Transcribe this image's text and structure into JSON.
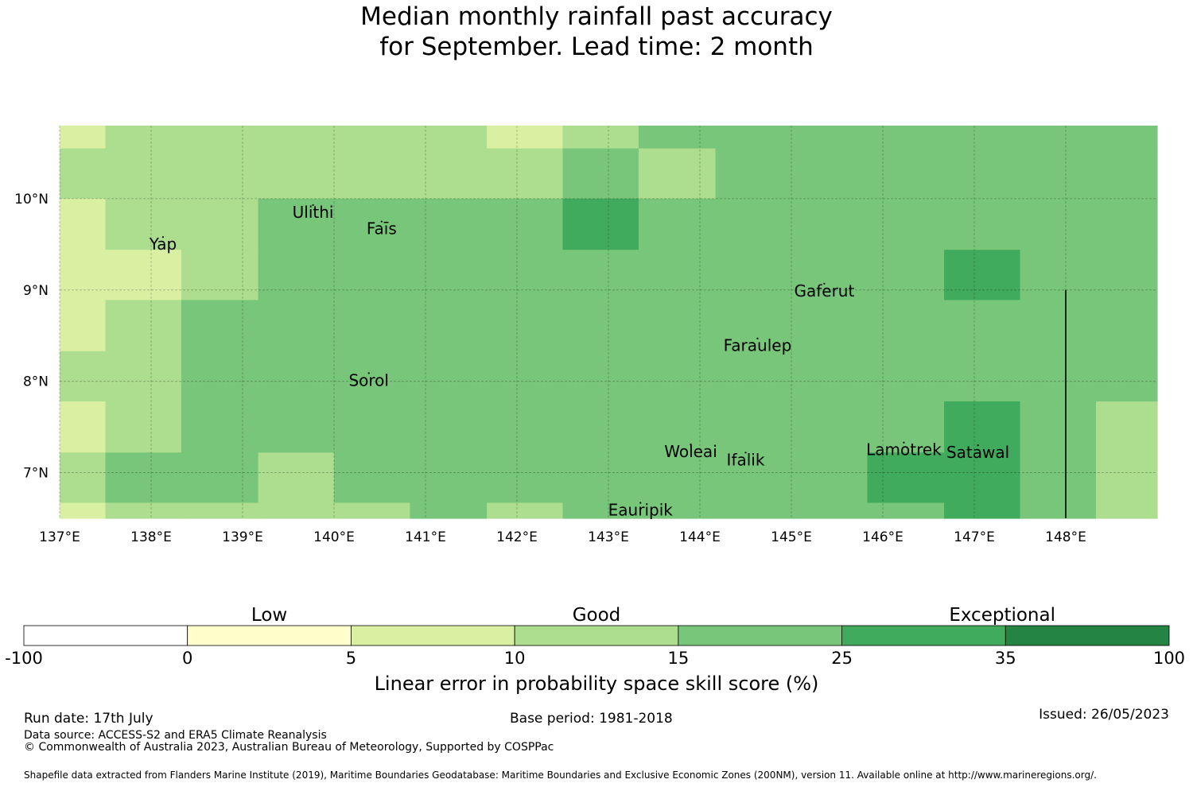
{
  "title": {
    "line1": "Median monthly rainfall past accuracy",
    "line2": "for September. Lead time: 2 month"
  },
  "chart_data": {
    "type": "heatmap",
    "lon_range": [
      137.0,
      149.0
    ],
    "lat_range": [
      6.5,
      10.8
    ],
    "cell_lon_edges": [
      137.0,
      137.5,
      138.33,
      139.17,
      140.0,
      140.83,
      141.67,
      142.5,
      143.33,
      144.17,
      145.0,
      145.83,
      146.67,
      147.5,
      148.33,
      149.0
    ],
    "cell_lat_edges": [
      10.8,
      10.55,
      10.0,
      9.44,
      8.89,
      8.33,
      7.78,
      7.22,
      6.67,
      6.5
    ],
    "class_grid": [
      [
        2,
        3,
        3,
        3,
        3,
        3,
        2,
        3,
        4,
        4,
        4,
        4,
        4,
        4,
        4
      ],
      [
        3,
        3,
        3,
        3,
        3,
        3,
        3,
        4,
        3,
        4,
        4,
        4,
        4,
        4,
        4
      ],
      [
        2,
        3,
        3,
        4,
        4,
        4,
        4,
        5,
        4,
        4,
        4,
        4,
        4,
        4,
        4
      ],
      [
        2,
        2,
        3,
        4,
        4,
        4,
        4,
        4,
        4,
        4,
        4,
        4,
        5,
        4,
        4
      ],
      [
        2,
        3,
        4,
        4,
        4,
        4,
        4,
        4,
        4,
        4,
        4,
        4,
        4,
        4,
        4
      ],
      [
        3,
        3,
        4,
        4,
        4,
        4,
        4,
        4,
        4,
        4,
        4,
        4,
        4,
        4,
        4
      ],
      [
        2,
        3,
        4,
        4,
        4,
        4,
        4,
        4,
        4,
        4,
        4,
        4,
        5,
        4,
        3
      ],
      [
        3,
        4,
        4,
        3,
        4,
        4,
        4,
        4,
        4,
        4,
        4,
        5,
        5,
        4,
        3
      ],
      [
        2,
        3,
        3,
        3,
        3,
        4,
        3,
        4,
        4,
        4,
        4,
        4,
        5,
        4,
        3
      ]
    ],
    "xticks": [
      {
        "value": 137,
        "label": "137°E"
      },
      {
        "value": 138,
        "label": "138°E"
      },
      {
        "value": 139,
        "label": "139°E"
      },
      {
        "value": 140,
        "label": "140°E"
      },
      {
        "value": 141,
        "label": "141°E"
      },
      {
        "value": 142,
        "label": "142°E"
      },
      {
        "value": 143,
        "label": "143°E"
      },
      {
        "value": 144,
        "label": "144°E"
      },
      {
        "value": 145,
        "label": "145°E"
      },
      {
        "value": 146,
        "label": "146°E"
      },
      {
        "value": 147,
        "label": "147°E"
      },
      {
        "value": 148,
        "label": "148°E"
      }
    ],
    "yticks": [
      {
        "value": 10,
        "label": "10°N"
      },
      {
        "value": 9,
        "label": "9°N"
      },
      {
        "value": 8,
        "label": "8°N"
      },
      {
        "value": 7,
        "label": "7°N"
      }
    ],
    "grid": true,
    "boundary_line": {
      "lon": 148.0,
      "lat_from": 9.0,
      "lat_to": 6.5
    },
    "places": [
      {
        "name": "Ulithi",
        "lon": 139.77,
        "lat": 9.86
      },
      {
        "name": "Faīs",
        "lon": 140.52,
        "lat": 9.68
      },
      {
        "name": "Yap",
        "lon": 138.13,
        "lat": 9.51
      },
      {
        "name": "Gaferut",
        "lon": 145.36,
        "lat": 9.0
      },
      {
        "name": "Faraulep",
        "lon": 144.63,
        "lat": 8.4
      },
      {
        "name": "Sorol",
        "lon": 140.38,
        "lat": 8.02
      },
      {
        "name": "Woleai",
        "lon": 143.9,
        "lat": 7.24
      },
      {
        "name": "Ifalik",
        "lon": 144.5,
        "lat": 7.15
      },
      {
        "name": "Lamotrek",
        "lon": 146.23,
        "lat": 7.26
      },
      {
        "name": "Satawal",
        "lon": 147.04,
        "lat": 7.23
      },
      {
        "name": "Eauripik",
        "lon": 143.35,
        "lat": 6.6
      }
    ],
    "legend": {
      "categories": [
        "Low",
        "Good",
        "Exceptional"
      ],
      "boundaries": [
        "-100",
        "0",
        "5",
        "10",
        "15",
        "25",
        "35",
        "100"
      ],
      "colors": [
        "#ffffff",
        "#ffffcc",
        "#d9f0a3",
        "#addd8e",
        "#78c679",
        "#41ab5d",
        "#238443"
      ],
      "label": "Linear error in probability space skill score (%)"
    }
  },
  "footer": {
    "run_date": "Run date: 17th July",
    "base_period": "Base period: 1981-2018",
    "issued": "Issued: 26/05/2023",
    "data_source": "Data source: ACCESS-S2 and ERA5 Climate Reanalysis",
    "copyright": "© Commonwealth of Australia 2023, Australian Bureau of Meteorology, Supported by COSPPac",
    "shapefile": "Shapefile data extracted from Flanders Marine Institute (2019), Maritime Boundaries Geodatabase: Maritime Boundaries and Exclusive Economic Zones (200NM), version 11. Available online at http://www.marineregions.org/."
  }
}
